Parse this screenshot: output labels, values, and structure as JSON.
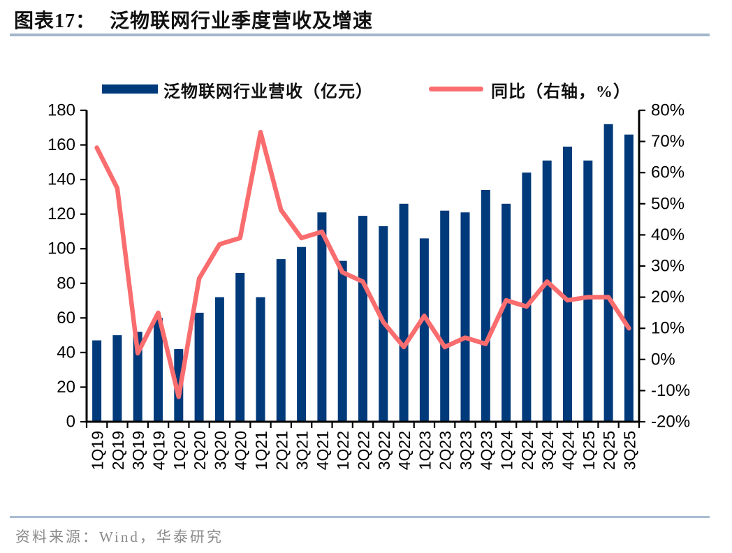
{
  "header": {
    "figure_label": "图表17：",
    "title": "泛物联网行业季度营收及增速"
  },
  "legend": {
    "bar_label": "泛物联网行业营收（亿元）",
    "line_label": "同比（右轴，%）"
  },
  "footer": {
    "source": "资料来源：Wind，华泰研究"
  },
  "colors": {
    "bar": "#003a7a",
    "line": "#f96d6f",
    "axis": "#000000",
    "header_rule": "#a3b7cb",
    "footer_rule": "#a9bdd1",
    "footer_text": "#8a8a8a"
  },
  "chart_data": {
    "type": "bar",
    "subtype": "bar+line combo, dual axis",
    "title": "泛物联网行业季度营收及增速",
    "categories": [
      "1Q19",
      "2Q19",
      "3Q19",
      "4Q19",
      "1Q20",
      "2Q20",
      "3Q20",
      "4Q20",
      "1Q21",
      "2Q21",
      "3Q21",
      "4Q21",
      "1Q22",
      "2Q22",
      "3Q22",
      "4Q22",
      "1Q23",
      "2Q23",
      "3Q23",
      "4Q23",
      "1Q24",
      "2Q24",
      "3Q24",
      "4Q24",
      "1Q25",
      "2Q25",
      "3Q25"
    ],
    "series": [
      {
        "name": "泛物联网行业营收（亿元）",
        "type": "bar",
        "axis": "left",
        "values": [
          47,
          50,
          52,
          60,
          42,
          63,
          72,
          86,
          72,
          94,
          101,
          121,
          93,
          119,
          113,
          126,
          106,
          122,
          121,
          134,
          126,
          144,
          151,
          159,
          151,
          172,
          166
        ]
      },
      {
        "name": "同比（右轴，%）",
        "type": "line",
        "axis": "right",
        "values": [
          68,
          55,
          2,
          15,
          -12,
          26,
          37,
          39,
          73,
          48,
          39,
          41,
          28,
          25,
          12,
          4,
          14,
          4,
          7,
          5,
          19,
          17,
          25,
          19,
          20,
          20,
          10
        ]
      }
    ],
    "left_axis": {
      "min": 0,
      "max": 180,
      "step": 20,
      "ticks": [
        "180",
        "160",
        "140",
        "120",
        "100",
        "80",
        "60",
        "40",
        "20",
        "0"
      ]
    },
    "right_axis": {
      "min": -20,
      "max": 80,
      "step": 10,
      "suffix": "%",
      "ticks": [
        "80%",
        "70%",
        "60%",
        "50%",
        "40%",
        "30%",
        "20%",
        "10%",
        "0%",
        "-10%",
        "-20%"
      ]
    },
    "grid": false,
    "legend_position": "top"
  }
}
